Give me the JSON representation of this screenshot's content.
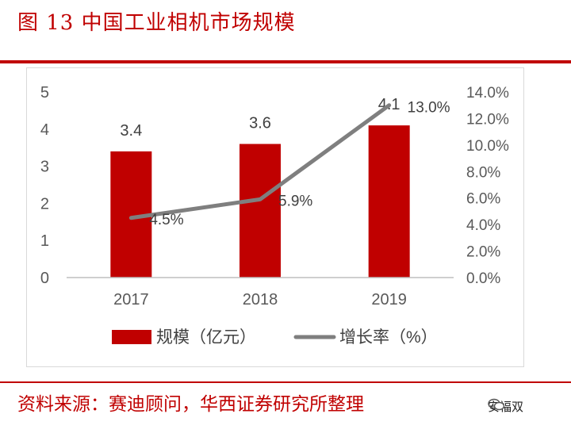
{
  "figure": {
    "title": "图 13 中国工业相机市场规模",
    "source": "资料来源：赛迪顾问，华西证券研究所整理",
    "watermark": "安福双"
  },
  "colors": {
    "bar": "#c00000",
    "line": "#7f7f7f",
    "accent": "#c00000"
  },
  "chart_data": {
    "type": "bar",
    "categories": [
      "2017",
      "2018",
      "2019"
    ],
    "series": [
      {
        "name": "规模（亿元）",
        "type": "bar",
        "axis": "left",
        "values": [
          3.4,
          3.6,
          4.1
        ],
        "labels": [
          "3.4",
          "3.6",
          "4.1"
        ]
      },
      {
        "name": "增长率（%）",
        "type": "line",
        "axis": "right",
        "values": [
          4.5,
          5.9,
          13.0
        ],
        "labels": [
          "4.5%",
          "5.9%",
          "13.0%"
        ]
      }
    ],
    "y_left": {
      "ylim": [
        0,
        5
      ],
      "ticks": [
        "0",
        "1",
        "2",
        "3",
        "4",
        "5"
      ]
    },
    "y_right": {
      "ylim": [
        0,
        14
      ],
      "ticks": [
        "0.0%",
        "2.0%",
        "4.0%",
        "6.0%",
        "8.0%",
        "10.0%",
        "12.0%",
        "14.0%"
      ]
    },
    "grid": false,
    "legend": "bottom"
  }
}
